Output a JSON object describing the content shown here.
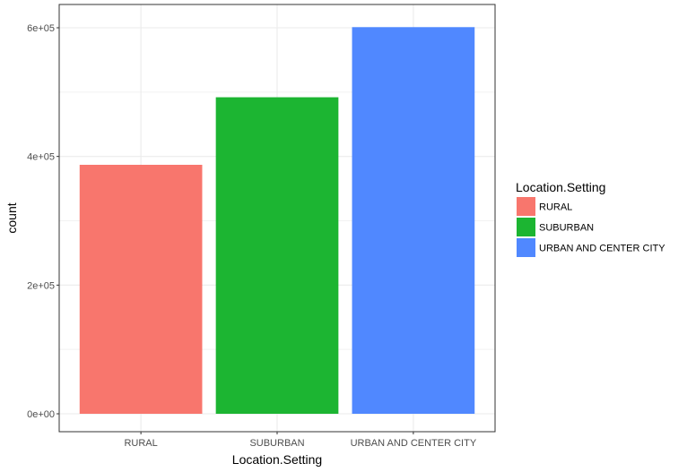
{
  "chart_data": {
    "type": "bar",
    "title": "",
    "xlabel": "Location.Setting",
    "ylabel": "count",
    "categories": [
      "RURAL",
      "SUBURBAN",
      "URBAN AND CENTER CITY"
    ],
    "values": [
      387000,
      492000,
      601000
    ],
    "colors": [
      "#F8766D",
      "#1CB532",
      "#5088FF"
    ],
    "ylim": [
      0,
      630000
    ],
    "yticks": [
      0,
      200000,
      400000,
      600000
    ],
    "ytick_labels": [
      "0e+00",
      "2e+05",
      "4e+05",
      "6e+05"
    ],
    "grid": true,
    "legend": {
      "title": "Location.Setting",
      "placement": "right",
      "entries": [
        "RURAL",
        "SUBURBAN",
        "URBAN AND CENTER CITY"
      ]
    }
  }
}
